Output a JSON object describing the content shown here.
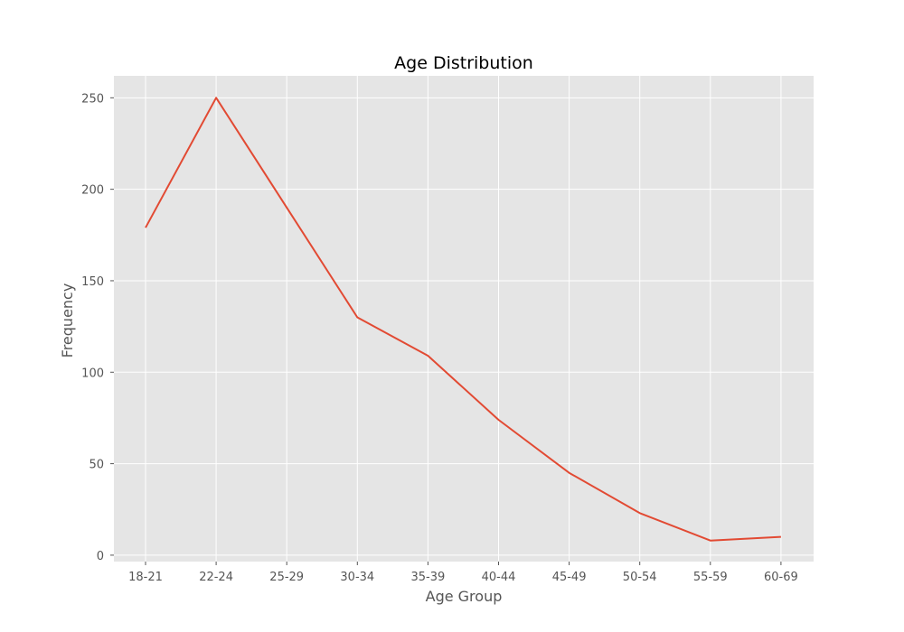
{
  "chart_data": {
    "type": "line",
    "title": "Age Distribution",
    "xlabel": "Age Group",
    "ylabel": "Frequency",
    "categories": [
      "18-21",
      "22-24",
      "25-29",
      "30-34",
      "35-39",
      "40-44",
      "45-49",
      "50-54",
      "55-59",
      "60-69"
    ],
    "series": [
      {
        "values": [
          179,
          250,
          190,
          130,
          109,
          74,
          45,
          23,
          8,
          10
        ],
        "color": "#E24A33"
      }
    ],
    "yticks": [
      0,
      50,
      100,
      150,
      200,
      250
    ],
    "ylim": [
      -3.5,
      262
    ],
    "grid": true,
    "background": "#E5E5E5",
    "grid_color": "#FFFFFF",
    "tick_color": "#555555"
  }
}
